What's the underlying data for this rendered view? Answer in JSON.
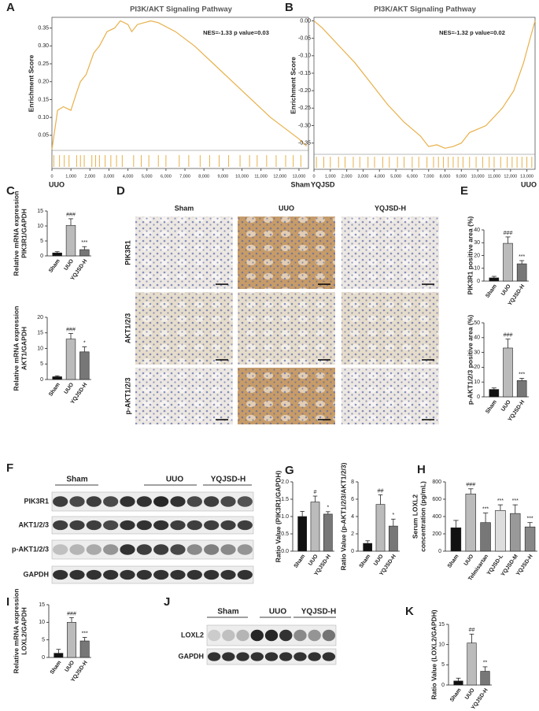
{
  "figure": {
    "panel_letters": [
      "A",
      "B",
      "C",
      "D",
      "E",
      "F",
      "G",
      "H",
      "I",
      "J",
      "K"
    ],
    "histology": {
      "columns": [
        "Sham",
        "UUO",
        "YQJSD-H"
      ],
      "rows": [
        "PIK3R1",
        "AKT1/2/3",
        "p-AKT1/2/3"
      ]
    },
    "blot_F": {
      "groups": [
        "Sham",
        "UUO",
        "YQJSD-H"
      ],
      "rows": [
        "PIK3R1",
        "AKT1/2/3",
        "p-AKT1/2/3",
        "GAPDH"
      ]
    },
    "blot_J": {
      "groups": [
        "Sham",
        "UUO",
        "YQJSD-H"
      ],
      "rows": [
        "LOXL2",
        "GAPDH"
      ]
    }
  },
  "chart_data": [
    {
      "type": "line",
      "title": "PI3K/AKT Signaling Pathway",
      "ylabel": "Enrichment Score",
      "annotation": "NES=-1.33  p value=0.03",
      "start_label": "UUO",
      "end_label": "Sham",
      "color": "#e8b04a",
      "hit_color": "#e8b04a",
      "x": [
        0,
        300,
        600,
        1000,
        1300,
        1500,
        1800,
        2200,
        2500,
        2900,
        3300,
        3600,
        4000,
        4200,
        4500,
        5200,
        5600,
        6500,
        7500,
        8500,
        9500,
        10500,
        11500,
        12500,
        13000,
        13400
      ],
      "values": [
        0.01,
        0.12,
        0.13,
        0.12,
        0.17,
        0.2,
        0.22,
        0.28,
        0.3,
        0.34,
        0.35,
        0.37,
        0.36,
        0.34,
        0.36,
        0.37,
        0.365,
        0.34,
        0.3,
        0.25,
        0.2,
        0.15,
        0.1,
        0.06,
        0.04,
        0.02
      ],
      "hits": [
        100,
        400,
        650,
        900,
        1300,
        1500,
        1700,
        2100,
        2300,
        2500,
        2800,
        3100,
        3400,
        3700,
        4300,
        4700,
        5100,
        5600,
        6000,
        6700,
        7200,
        7800,
        8300,
        8800,
        9300,
        9900,
        10400,
        10800,
        11300,
        11800,
        12300,
        12700,
        13100
      ],
      "xlim": [
        0,
        13500
      ],
      "ylim": [
        0.01,
        0.38
      ],
      "xticks": [
        0,
        {
          "value": 1000,
          "label": "1,000"
        },
        {
          "value": 2000,
          "label": "2,000"
        },
        {
          "value": 3000,
          "label": "3,000"
        },
        {
          "value": 4000,
          "label": "4,000"
        },
        {
          "value": 5000,
          "label": "5,000"
        },
        {
          "value": 6000,
          "label": "6,000"
        },
        {
          "value": 7000,
          "label": "7,000"
        },
        {
          "value": 8000,
          "label": "8,000"
        },
        {
          "value": 9000,
          "label": "9,000"
        },
        {
          "value": 10000,
          "label": "10,000"
        },
        {
          "value": 11000,
          "label": "11,000"
        },
        {
          "value": 12000,
          "label": "12,000"
        },
        {
          "value": 13000,
          "label": "13,000"
        }
      ],
      "yticks": [
        0.05,
        {
          "value": 0.1,
          "label": "0.10"
        },
        0.15,
        {
          "value": 0.2,
          "label": "0.20"
        },
        0.25,
        {
          "value": 0.3,
          "label": "0.30"
        },
        0.35
      ]
    },
    {
      "type": "line",
      "title": "PI3K/AKT Signaling Pathway",
      "ylabel": "Enrichment Score",
      "annotation": "NES=-1.32  p value=0.02",
      "start_label": "YQJSD",
      "end_label": "UUO",
      "color": "#e8b04a",
      "hit_color": "#e8b04a",
      "x": [
        0,
        500,
        1500,
        2500,
        3500,
        4500,
        5500,
        6500,
        7000,
        7500,
        8000,
        8500,
        9000,
        9500,
        10500,
        11500,
        12200,
        12800,
        13200,
        13500
      ],
      "values": [
        0,
        -0.02,
        -0.07,
        -0.12,
        -0.18,
        -0.24,
        -0.29,
        -0.33,
        -0.36,
        -0.355,
        -0.365,
        -0.36,
        -0.35,
        -0.32,
        -0.3,
        -0.25,
        -0.2,
        -0.12,
        -0.05,
        0
      ],
      "hits": [
        150,
        600,
        1000,
        1500,
        1900,
        2400,
        2800,
        3300,
        3700,
        4200,
        4600,
        5100,
        5500,
        6000,
        6400,
        6900,
        7300,
        7600,
        7900,
        8200,
        8500,
        8800,
        9100,
        9500,
        9900,
        10300,
        10700,
        11000,
        11400,
        11800,
        12100,
        12400,
        12700,
        13000,
        13300
      ],
      "xlim": [
        0,
        13500
      ],
      "ylim": [
        -0.38,
        0.01
      ],
      "xticks": [
        0,
        {
          "value": 1000,
          "label": "1,000"
        },
        {
          "value": 2000,
          "label": "2,000"
        },
        {
          "value": 3000,
          "label": "3,000"
        },
        {
          "value": 4000,
          "label": "4,000"
        },
        {
          "value": 5000,
          "label": "5,000"
        },
        {
          "value": 6000,
          "label": "6,000"
        },
        {
          "value": 7000,
          "label": "7,000"
        },
        {
          "value": 8000,
          "label": "8,000"
        },
        {
          "value": 9000,
          "label": "9,000"
        },
        {
          "value": 10000,
          "label": "10,000"
        },
        {
          "value": 11000,
          "label": "11,000"
        },
        {
          "value": 12000,
          "label": "12,000"
        },
        {
          "value": 13000,
          "label": "13,000"
        }
      ],
      "yticks": [
        {
          "value": 0,
          "label": "0.00"
        },
        -0.05,
        {
          "value": -0.1,
          "label": "-0.10"
        },
        -0.15,
        {
          "value": -0.2,
          "label": "-0.20"
        },
        -0.25,
        {
          "value": -0.3,
          "label": "-0.30"
        },
        -0.35
      ]
    },
    {
      "type": "bar",
      "ylabel": [
        "Relative mRNA expression",
        "PIK3R1/GAPDH"
      ],
      "categories": [
        "Sham",
        "UUO",
        "YQJSD-H"
      ],
      "values": [
        1,
        10.2,
        2.1
      ],
      "errors": [
        0.4,
        2.2,
        1
      ],
      "annotations": [
        null,
        "###",
        "***"
      ],
      "colors": [
        "#111",
        "#bbb",
        "#777"
      ],
      "ylim": [
        0,
        15
      ],
      "yticks": [
        0,
        5,
        10,
        15
      ]
    },
    {
      "type": "bar",
      "ylabel": [
        "Relative mRNA expression",
        "AKT1/GAPDH"
      ],
      "categories": [
        "Sham",
        "UUO",
        "YQJSD-H"
      ],
      "values": [
        0.9,
        13,
        8.9
      ],
      "errors": [
        0.3,
        1.8,
        1.6
      ],
      "annotations": [
        null,
        "###",
        "*"
      ],
      "colors": [
        "#111",
        "#bbb",
        "#777"
      ],
      "ylim": [
        0,
        20
      ],
      "yticks": [
        0,
        5,
        10,
        15,
        20
      ]
    },
    {
      "type": "bar",
      "ylabel": [
        "PIK3R1 positive area (%)"
      ],
      "categories": [
        "Sham",
        "UUO",
        "YQJSD-H"
      ],
      "values": [
        2.5,
        29.5,
        13.5
      ],
      "errors": [
        1.2,
        5,
        2.5
      ],
      "annotations": [
        null,
        "###",
        "***"
      ],
      "colors": [
        "#111",
        "#bbb",
        "#777"
      ],
      "ylim": [
        0,
        40
      ],
      "yticks": [
        0,
        10,
        20,
        30,
        40
      ]
    },
    {
      "type": "bar",
      "ylabel": [
        "p-AKT1/2/3 positive area (%)"
      ],
      "categories": [
        "Sham",
        "UUO",
        "YQJSD-H"
      ],
      "values": [
        5,
        33,
        11
      ],
      "errors": [
        1,
        6,
        1.5
      ],
      "annotations": [
        null,
        "###",
        "***"
      ],
      "colors": [
        "#111",
        "#bbb",
        "#777"
      ],
      "ylim": [
        0,
        50
      ],
      "yticks": [
        0,
        10,
        20,
        30,
        40,
        50
      ]
    },
    {
      "type": "bar",
      "ylabel": [
        "Ratio Value (PIK3R1/GAPDH)"
      ],
      "categories": [
        "Sham",
        "UUO",
        "YQJSD-H"
      ],
      "values": [
        1,
        1.42,
        1.07
      ],
      "errors": [
        0.15,
        0.17,
        0.07
      ],
      "annotations": [
        null,
        "#",
        "*"
      ],
      "colors": [
        "#111",
        "#bbb",
        "#777"
      ],
      "ylim": [
        0,
        2
      ],
      "yticks": [
        {
          "value": 0,
          "label": "0.0"
        },
        0.5,
        {
          "value": 1,
          "label": "1.0"
        },
        1.5,
        {
          "value": 2,
          "label": "2.0"
        }
      ]
    },
    {
      "type": "bar",
      "ylabel": [
        "Ratio Value (p-AKT1/2/3/AKT1/2/3)"
      ],
      "categories": [
        "Sham",
        "UUO",
        "YQJSD-H"
      ],
      "values": [
        0.9,
        5.4,
        2.9
      ],
      "errors": [
        0.3,
        1.1,
        0.8
      ],
      "annotations": [
        null,
        "##",
        "*"
      ],
      "colors": [
        "#111",
        "#bbb",
        "#777"
      ],
      "ylim": [
        0,
        8
      ],
      "yticks": [
        0,
        2,
        4,
        6,
        8
      ]
    },
    {
      "type": "bar",
      "ylabel": [
        "Serum LOXL2",
        "concentration (pg/mL)"
      ],
      "categories": [
        "Sham",
        "UUO",
        "Telmisartan",
        "YQJSD-L",
        "YQJSD-M",
        "YQJSD-H"
      ],
      "values": [
        270,
        660,
        330,
        470,
        435,
        280
      ],
      "errors": [
        85,
        60,
        110,
        65,
        100,
        50
      ],
      "annotations": [
        null,
        "###",
        "***",
        "***",
        "***",
        "***"
      ],
      "colors": [
        "#111",
        "#bbb",
        "#777",
        "#ddd",
        "#999",
        "#888"
      ],
      "ylim": [
        0,
        800
      ],
      "yticks": [
        0,
        200,
        400,
        600,
        800
      ]
    },
    {
      "type": "bar",
      "ylabel": [
        "Relative mRNA expression",
        "LOXL2/GAPDH"
      ],
      "categories": [
        "Sham",
        "UUO",
        "YQJSD-H"
      ],
      "values": [
        1.2,
        10,
        4.7
      ],
      "errors": [
        1.1,
        1.3,
        1
      ],
      "annotations": [
        null,
        "###",
        "***"
      ],
      "colors": [
        "#111",
        "#bbb",
        "#777"
      ],
      "ylim": [
        0,
        15
      ],
      "yticks": [
        0,
        5,
        10,
        15
      ]
    },
    {
      "type": "bar",
      "ylabel": [
        "Ratio Value (LOXL2/GAPDH)"
      ],
      "categories": [
        "Sham",
        "UUO",
        "YQJSD-H"
      ],
      "values": [
        1,
        10.4,
        3.4
      ],
      "errors": [
        0.7,
        2.2,
        1.1
      ],
      "annotations": [
        null,
        "##",
        "**"
      ],
      "colors": [
        "#111",
        "#bbb",
        "#777"
      ],
      "ylim": [
        0,
        15
      ],
      "yticks": [
        0,
        5,
        10,
        15
      ]
    }
  ]
}
